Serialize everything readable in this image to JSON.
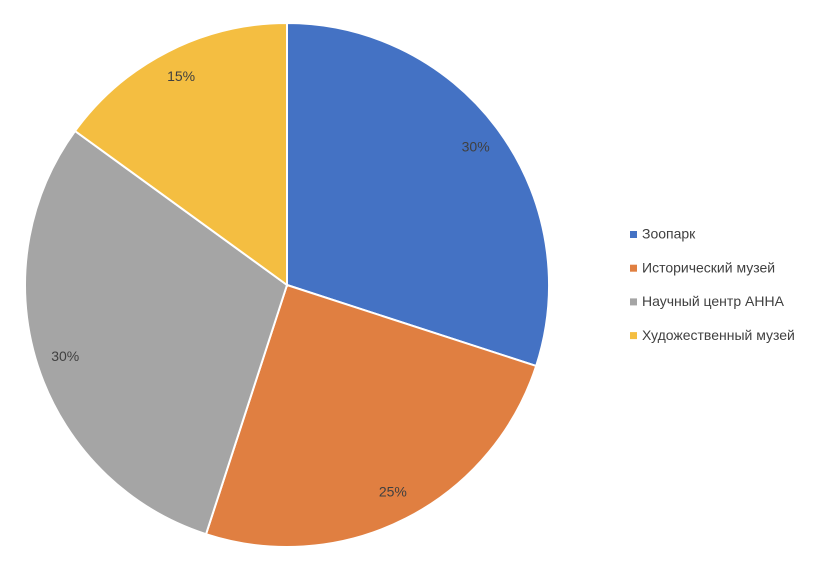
{
  "chart_data": {
    "type": "pie",
    "categories": [
      "Зоопарк",
      "Исторический музей",
      "Научный центр АННА",
      "Художественный музей"
    ],
    "values": [
      30,
      25,
      30,
      15
    ],
    "value_labels": [
      "30%",
      "25%",
      "30%",
      "15%"
    ],
    "colors": [
      "#4472c4",
      "#e07f41",
      "#a5a5a5",
      "#f4be41"
    ],
    "legend": "right"
  }
}
